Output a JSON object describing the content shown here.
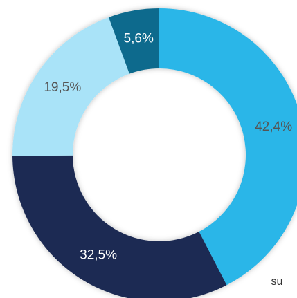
{
  "chart_data": {
    "type": "donut",
    "categories": [
      null,
      null,
      null,
      null
    ],
    "values": [
      42.4,
      32.5,
      19.5,
      5.6
    ],
    "value_labels": [
      "42,4%",
      "32,5%",
      "19,5%",
      "5,6%"
    ],
    "colors": [
      "#29b6e8",
      "#1b2a52",
      "#a9e3f8",
      "#0f6a8d"
    ],
    "legend_fragment": "su"
  }
}
